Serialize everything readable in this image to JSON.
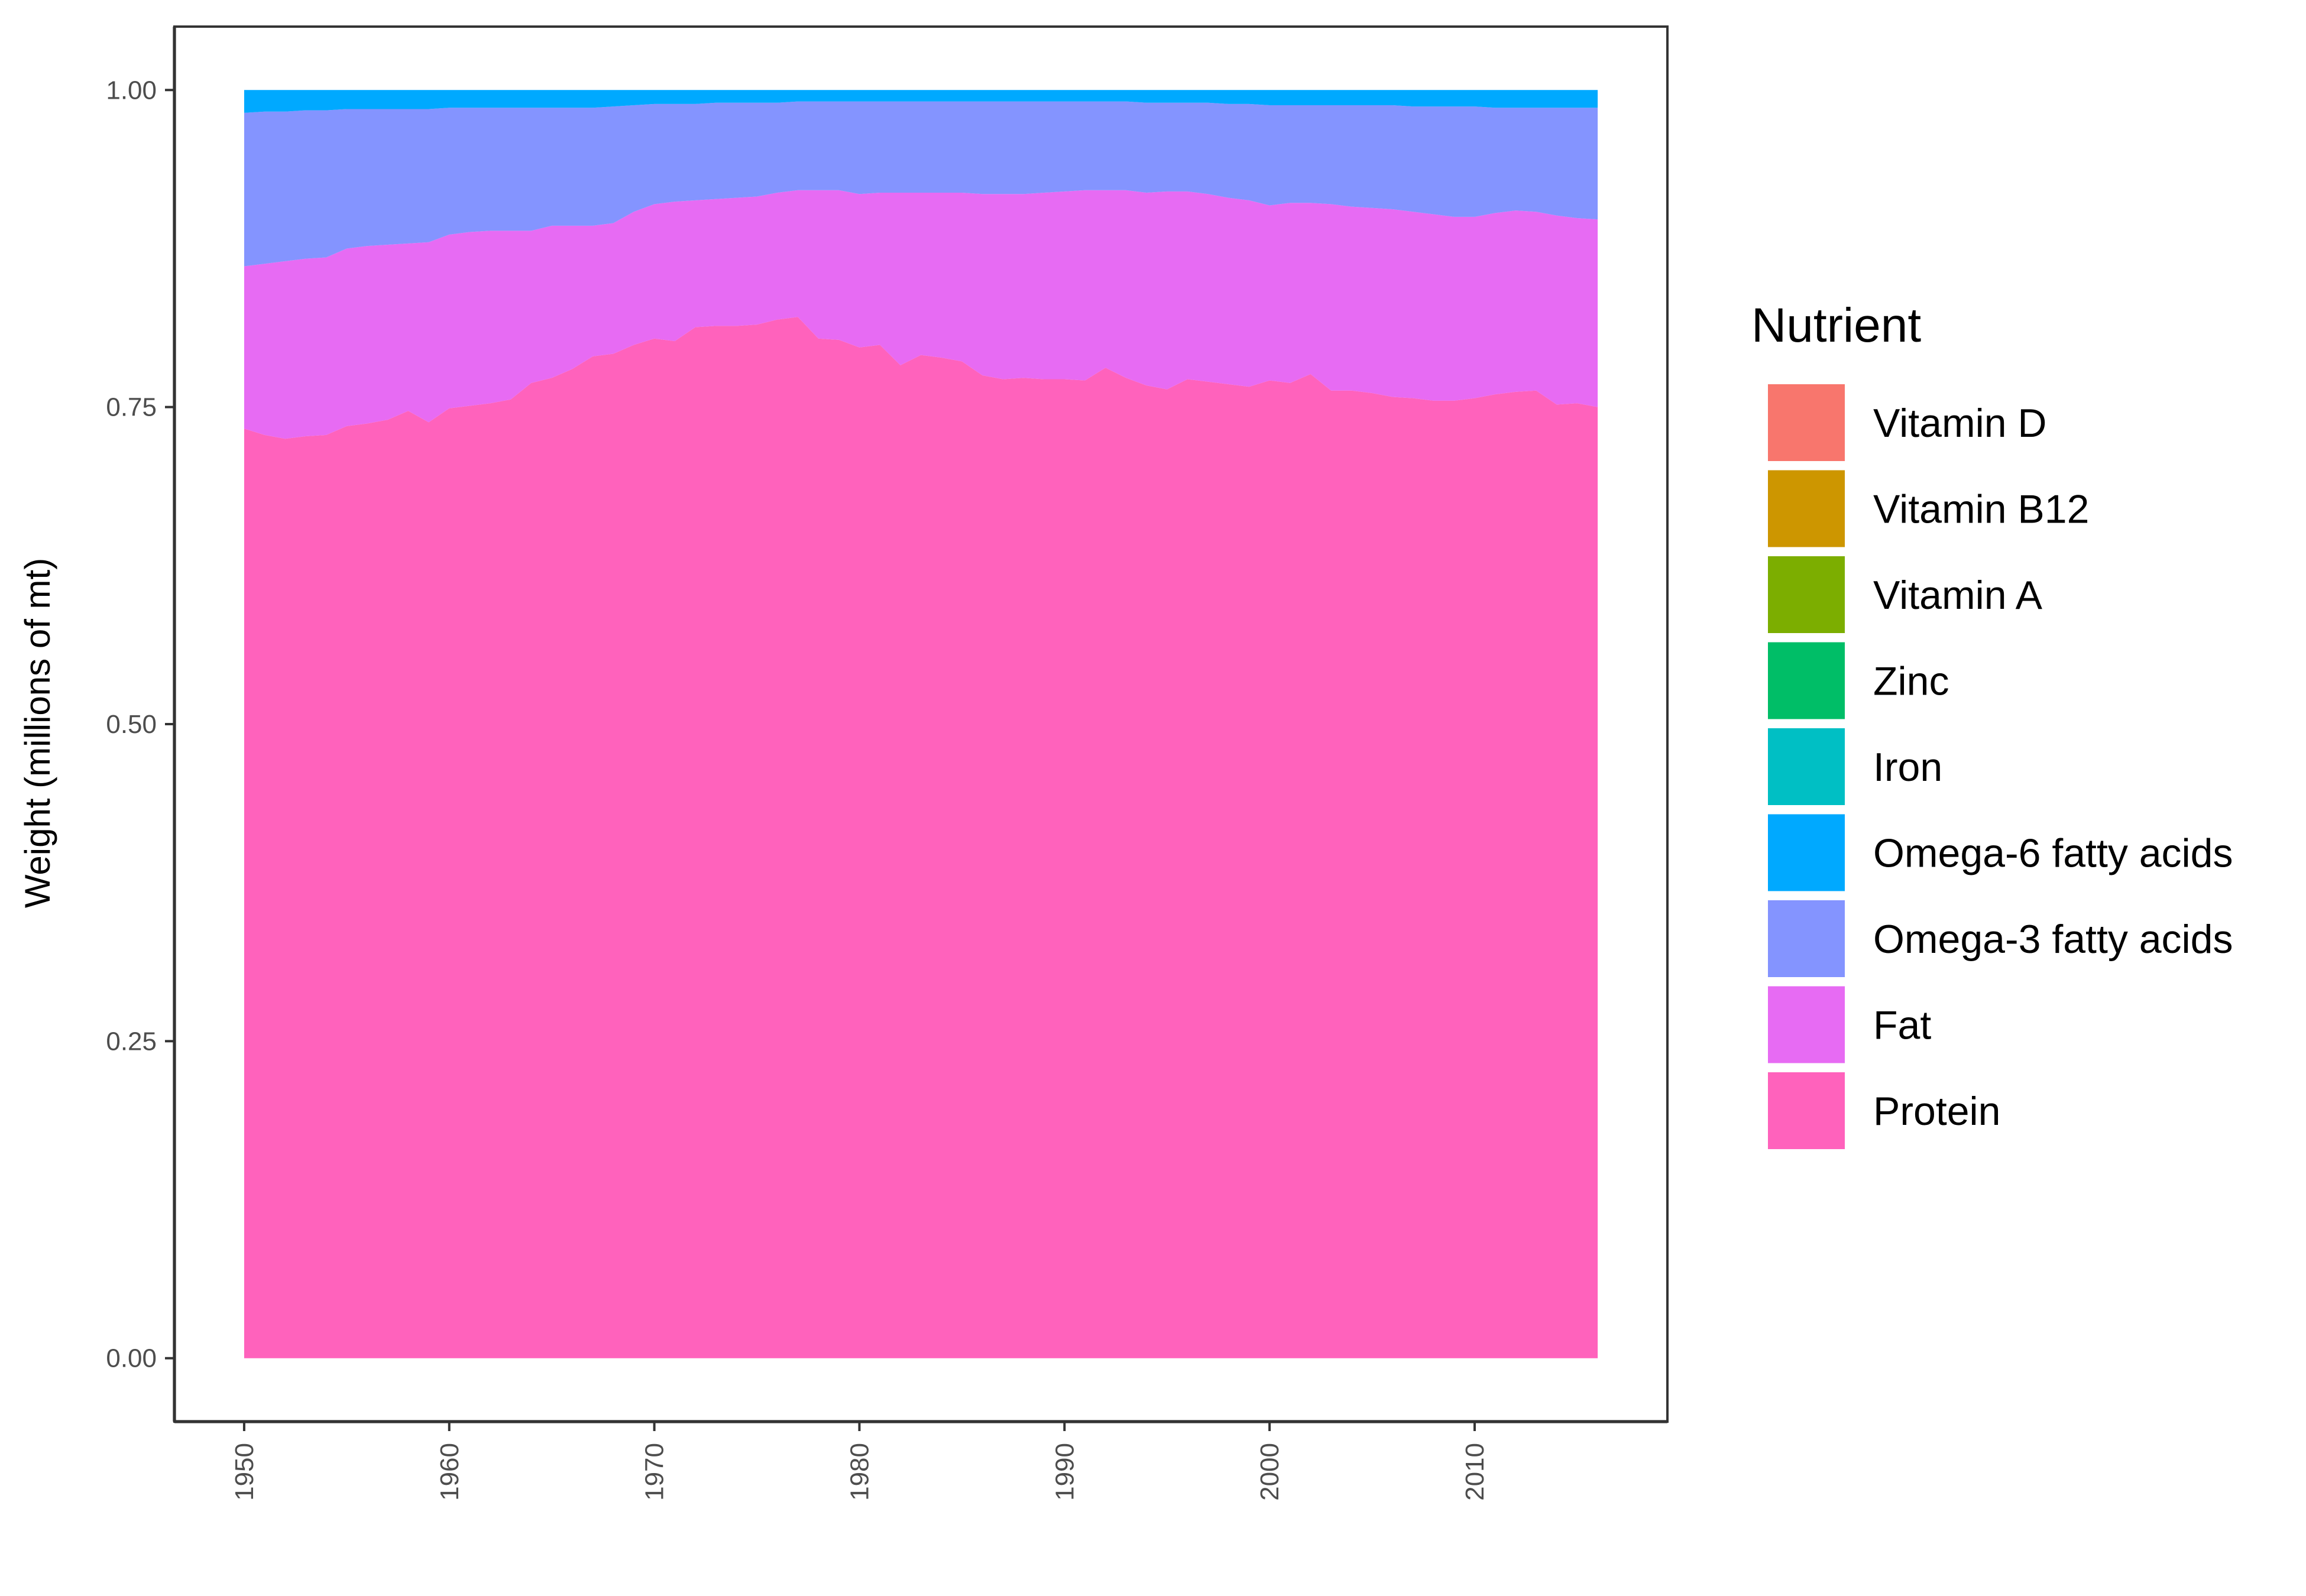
{
  "chart_data": {
    "type": "area",
    "stacked": true,
    "title": "",
    "xlabel": "",
    "ylabel": "Weight (millions of mt)",
    "xlim": [
      1946.6,
      2019.4
    ],
    "ylim": [
      -0.05,
      1.05
    ],
    "x_ticks": [
      1950,
      1960,
      1970,
      1980,
      1990,
      2000,
      2010
    ],
    "x_tick_labels": [
      "1950",
      "1960",
      "1970",
      "1980",
      "1990",
      "2000",
      "2010"
    ],
    "y_ticks": [
      0,
      0.25,
      0.5,
      0.75,
      1.0
    ],
    "y_tick_labels": [
      "0.00",
      "0.25",
      "0.50",
      "0.75",
      "1.00"
    ],
    "grid": false,
    "legend": {
      "title": "Nutrient",
      "position": "right"
    },
    "x": [
      1950,
      1951,
      1952,
      1953,
      1954,
      1955,
      1956,
      1957,
      1958,
      1959,
      1960,
      1961,
      1962,
      1963,
      1964,
      1965,
      1966,
      1967,
      1968,
      1969,
      1970,
      1971,
      1972,
      1973,
      1974,
      1975,
      1976,
      1977,
      1978,
      1979,
      1980,
      1981,
      1982,
      1983,
      1984,
      1985,
      1986,
      1987,
      1988,
      1989,
      1990,
      1991,
      1992,
      1993,
      1994,
      1995,
      1996,
      1997,
      1998,
      1999,
      2000,
      2001,
      2002,
      2003,
      2004,
      2005,
      2006,
      2007,
      2008,
      2009,
      2010,
      2011,
      2012,
      2013,
      2014,
      2015,
      2016
    ],
    "series": [
      {
        "name": "Vitamin D",
        "color": "#F8766D",
        "values": [
          0,
          0,
          0,
          0,
          0,
          0,
          0,
          0,
          0,
          0,
          0,
          0,
          0,
          0,
          0,
          0,
          0,
          0,
          0,
          0,
          0,
          0,
          0,
          0,
          0,
          0,
          0,
          0,
          0,
          0,
          0,
          0,
          0,
          0,
          0,
          0,
          0,
          0,
          0,
          0,
          0,
          0,
          0,
          0,
          0,
          0,
          0,
          0,
          0,
          0,
          0,
          0,
          0,
          0,
          0,
          0,
          0,
          0,
          0,
          0,
          0,
          0,
          0,
          0,
          0,
          0,
          0
        ]
      },
      {
        "name": "Vitamin B12",
        "color": "#CD9600",
        "values": [
          0,
          0,
          0,
          0,
          0,
          0,
          0,
          0,
          0,
          0,
          0,
          0,
          0,
          0,
          0,
          0,
          0,
          0,
          0,
          0,
          0,
          0,
          0,
          0,
          0,
          0,
          0,
          0,
          0,
          0,
          0,
          0,
          0,
          0,
          0,
          0,
          0,
          0,
          0,
          0,
          0,
          0,
          0,
          0,
          0,
          0,
          0,
          0,
          0,
          0,
          0,
          0,
          0,
          0,
          0,
          0,
          0,
          0,
          0,
          0,
          0,
          0,
          0,
          0,
          0,
          0,
          0
        ]
      },
      {
        "name": "Vitamin A",
        "color": "#7CAE00",
        "values": [
          0,
          0,
          0,
          0,
          0,
          0,
          0,
          0,
          0,
          0,
          0,
          0,
          0,
          0,
          0,
          0,
          0,
          0,
          0,
          0,
          0,
          0,
          0,
          0,
          0,
          0,
          0,
          0,
          0,
          0,
          0,
          0,
          0,
          0,
          0,
          0,
          0,
          0,
          0,
          0,
          0,
          0,
          0,
          0,
          0,
          0,
          0,
          0,
          0,
          0,
          0,
          0,
          0,
          0,
          0,
          0,
          0,
          0,
          0,
          0,
          0,
          0,
          0,
          0,
          0,
          0,
          0
        ]
      },
      {
        "name": "Zinc",
        "color": "#00BE67",
        "values": [
          0,
          0,
          0,
          0,
          0,
          0,
          0,
          0,
          0,
          0,
          0,
          0,
          0,
          0,
          0,
          0,
          0,
          0,
          0,
          0,
          0,
          0,
          0,
          0,
          0,
          0,
          0,
          0,
          0,
          0,
          0,
          0,
          0,
          0,
          0,
          0,
          0,
          0,
          0,
          0,
          0,
          0,
          0,
          0,
          0,
          0,
          0,
          0,
          0,
          0,
          0,
          0,
          0,
          0,
          0,
          0,
          0,
          0,
          0,
          0,
          0,
          0,
          0,
          0,
          0,
          0,
          0
        ]
      },
      {
        "name": "Iron",
        "color": "#00BFC4",
        "values": [
          0,
          0,
          0,
          0,
          0,
          0,
          0,
          0,
          0,
          0,
          0,
          0,
          0,
          0,
          0,
          0,
          0,
          0,
          0,
          0,
          0,
          0,
          0,
          0,
          0,
          0,
          0,
          0,
          0,
          0,
          0,
          0,
          0,
          0,
          0,
          0,
          0,
          0,
          0,
          0,
          0,
          0,
          0,
          0,
          0,
          0,
          0,
          0,
          0,
          0,
          0,
          0,
          0,
          0,
          0,
          0,
          0,
          0,
          0,
          0,
          0,
          0,
          0,
          0,
          0,
          0,
          0
        ]
      },
      {
        "name": "Omega-6 fatty acids",
        "color": "#00A9FF",
        "values": [
          0.018,
          0.017,
          0.017,
          0.016,
          0.016,
          0.015,
          0.015,
          0.015,
          0.015,
          0.015,
          0.014,
          0.014,
          0.014,
          0.014,
          0.014,
          0.014,
          0.014,
          0.014,
          0.013,
          0.012,
          0.011,
          0.011,
          0.011,
          0.01,
          0.01,
          0.01,
          0.01,
          0.009,
          0.009,
          0.009,
          0.009,
          0.009,
          0.009,
          0.009,
          0.009,
          0.009,
          0.009,
          0.009,
          0.009,
          0.009,
          0.009,
          0.009,
          0.009,
          0.009,
          0.01,
          0.01,
          0.01,
          0.01,
          0.011,
          0.011,
          0.012,
          0.012,
          0.012,
          0.012,
          0.012,
          0.012,
          0.012,
          0.013,
          0.013,
          0.013,
          0.013,
          0.014,
          0.014,
          0.014,
          0.014,
          0.014,
          0.014
        ]
      },
      {
        "name": "Omega-3 fatty acids",
        "color": "#8494FF",
        "values": [
          0.121,
          0.12,
          0.118,
          0.117,
          0.116,
          0.11,
          0.108,
          0.107,
          0.106,
          0.105,
          0.1,
          0.098,
          0.097,
          0.097,
          0.097,
          0.093,
          0.093,
          0.093,
          0.092,
          0.084,
          0.079,
          0.077,
          0.076,
          0.076,
          0.075,
          0.074,
          0.071,
          0.07,
          0.07,
          0.07,
          0.073,
          0.072,
          0.072,
          0.072,
          0.072,
          0.072,
          0.073,
          0.073,
          0.073,
          0.072,
          0.071,
          0.07,
          0.07,
          0.07,
          0.071,
          0.07,
          0.07,
          0.072,
          0.074,
          0.076,
          0.079,
          0.077,
          0.077,
          0.078,
          0.08,
          0.081,
          0.082,
          0.083,
          0.085,
          0.087,
          0.087,
          0.083,
          0.081,
          0.082,
          0.085,
          0.087,
          0.088
        ]
      },
      {
        "name": "Fat",
        "color": "#E76BF3",
        "values": [
          0.128,
          0.135,
          0.14,
          0.14,
          0.14,
          0.14,
          0.14,
          0.138,
          0.132,
          0.142,
          0.137,
          0.137,
          0.136,
          0.133,
          0.12,
          0.12,
          0.113,
          0.103,
          0.103,
          0.105,
          0.106,
          0.11,
          0.1,
          0.1,
          0.101,
          0.101,
          0.1,
          0.1,
          0.117,
          0.118,
          0.121,
          0.12,
          0.136,
          0.128,
          0.13,
          0.133,
          0.143,
          0.146,
          0.145,
          0.147,
          0.148,
          0.15,
          0.14,
          0.148,
          0.152,
          0.156,
          0.148,
          0.148,
          0.147,
          0.147,
          0.138,
          0.142,
          0.135,
          0.147,
          0.145,
          0.146,
          0.148,
          0.147,
          0.147,
          0.145,
          0.143,
          0.143,
          0.143,
          0.141,
          0.149,
          0.146,
          0.148
        ]
      },
      {
        "name": "Protein",
        "color": "#FF62BC",
        "values": [
          0.733,
          0.728,
          0.725,
          0.727,
          0.728,
          0.735,
          0.737,
          0.74,
          0.747,
          0.738,
          0.749,
          0.751,
          0.753,
          0.756,
          0.769,
          0.773,
          0.78,
          0.79,
          0.792,
          0.799,
          0.804,
          0.802,
          0.813,
          0.814,
          0.814,
          0.815,
          0.819,
          0.821,
          0.804,
          0.803,
          0.797,
          0.799,
          0.783,
          0.791,
          0.789,
          0.786,
          0.775,
          0.772,
          0.773,
          0.772,
          0.772,
          0.771,
          0.781,
          0.773,
          0.767,
          0.764,
          0.772,
          0.77,
          0.768,
          0.766,
          0.771,
          0.769,
          0.776,
          0.763,
          0.763,
          0.761,
          0.758,
          0.757,
          0.755,
          0.755,
          0.757,
          0.76,
          0.762,
          0.763,
          0.752,
          0.753,
          0.75
        ]
      }
    ]
  }
}
